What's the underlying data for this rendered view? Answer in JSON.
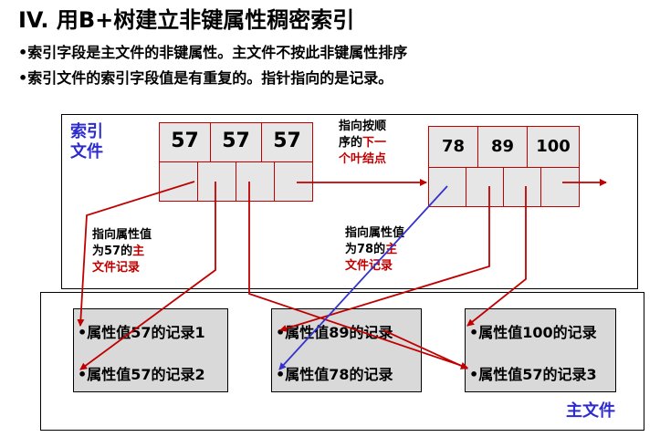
{
  "title": "IV. 用B+树建立非键属性稠密索引",
  "bullets": [
    "•索引字段是主文件的非键属性。主文件不按此非键属性排序",
    "•索引文件的索引字段值是有重复的。指针指向的是记录。"
  ],
  "index_file": {
    "label_line1": "索引",
    "label_line2": "文件",
    "node1_keys": [
      "57",
      "57",
      "57"
    ],
    "node2_keys": [
      "78",
      "89",
      "100"
    ]
  },
  "notes": {
    "next_leaf": {
      "line1": "指向按顺",
      "line2a": "序的",
      "line2b": "下一",
      "line3": "个叶结点"
    },
    "attr57": {
      "line1": "指向属性值",
      "line2a": "为57的",
      "line2b": "主",
      "line3": "文件记录"
    },
    "attr78": {
      "line1": "指向属性值",
      "line2a": "为78的",
      "line2b": "主",
      "line3": "文件记录"
    }
  },
  "main_file": {
    "label": "主文件",
    "blocks": [
      [
        "•属性值57的记录1",
        "•属性值57的记录2"
      ],
      [
        "•属性值89的记录",
        "•属性值78的记录"
      ],
      [
        "•属性值100的记录",
        "•属性值57的记录3"
      ]
    ]
  },
  "colors": {
    "arrow_red": "#c00000",
    "arrow_blue": "#3333cc",
    "label_blue": "#2b2bd0",
    "cell_fill": "#e6e6e6",
    "record_fill": "#d9d9d9"
  }
}
